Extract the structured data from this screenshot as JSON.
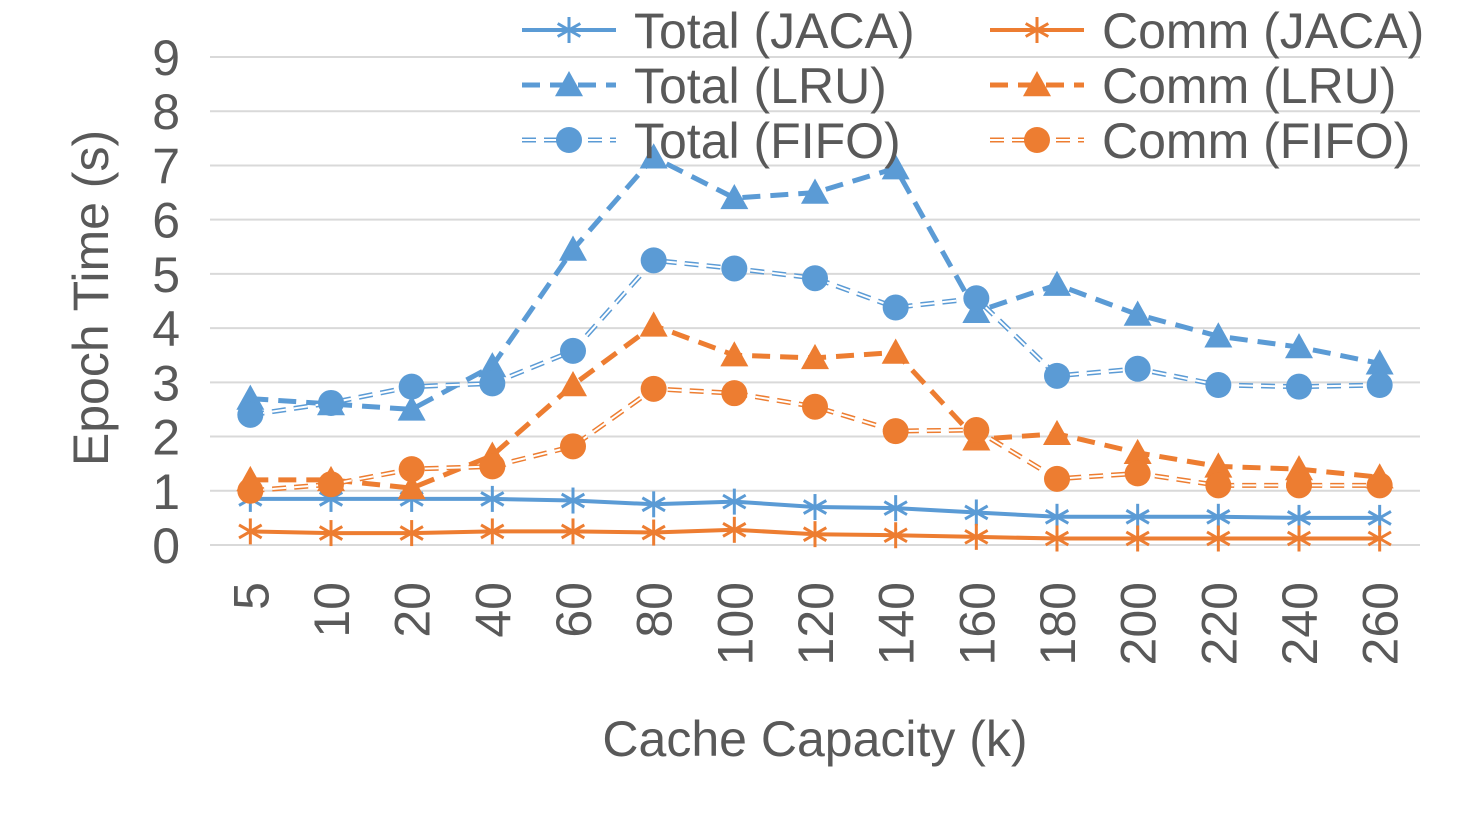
{
  "chart_data": {
    "type": "line",
    "title": "",
    "xlabel": "Cache Capacity (k)",
    "ylabel": "Epoch Time (s)",
    "ylim": [
      0,
      9
    ],
    "yticks": [
      0,
      1,
      2,
      3,
      4,
      5,
      6,
      7,
      8,
      9
    ],
    "grid": true,
    "legend_position": "top-right",
    "categories": [
      "5",
      "10",
      "20",
      "40",
      "60",
      "80",
      "100",
      "120",
      "140",
      "160",
      "180",
      "200",
      "220",
      "240",
      "260"
    ],
    "series": [
      {
        "name": "Total (JACA)",
        "color": "#5B9BD5",
        "style": "solid",
        "marker": "asterisk",
        "values": [
          0.85,
          0.85,
          0.85,
          0.85,
          0.82,
          0.75,
          0.8,
          0.7,
          0.68,
          0.6,
          0.52,
          0.52,
          0.52,
          0.5,
          0.5
        ]
      },
      {
        "name": "Comm (JACA)",
        "color": "#ED7D31",
        "style": "solid",
        "marker": "asterisk",
        "values": [
          0.25,
          0.22,
          0.22,
          0.25,
          0.25,
          0.23,
          0.28,
          0.2,
          0.18,
          0.15,
          0.12,
          0.12,
          0.12,
          0.12,
          0.12
        ]
      },
      {
        "name": "Total (LRU)",
        "color": "#5B9BD5",
        "style": "dashed",
        "marker": "triangle",
        "values": [
          2.7,
          2.6,
          2.5,
          3.3,
          5.45,
          7.15,
          6.4,
          6.5,
          6.95,
          4.3,
          4.8,
          4.25,
          3.85,
          3.65,
          3.35
        ]
      },
      {
        "name": "Comm (LRU)",
        "color": "#ED7D31",
        "style": "dashed",
        "marker": "triangle",
        "values": [
          1.2,
          1.2,
          1.05,
          1.65,
          2.95,
          4.05,
          3.5,
          3.45,
          3.55,
          1.95,
          2.05,
          1.7,
          1.45,
          1.4,
          1.25
        ]
      },
      {
        "name": "Total (FIFO)",
        "color": "#5B9BD5",
        "style": "dotted-outline",
        "marker": "circle",
        "values": [
          2.4,
          2.62,
          2.92,
          2.98,
          3.58,
          5.25,
          5.1,
          4.92,
          4.38,
          4.55,
          3.12,
          3.25,
          2.95,
          2.92,
          2.95
        ]
      },
      {
        "name": "Comm (FIFO)",
        "color": "#ED7D31",
        "style": "dotted-outline",
        "marker": "circle",
        "values": [
          1.0,
          1.12,
          1.4,
          1.45,
          1.82,
          2.88,
          2.8,
          2.55,
          2.1,
          2.12,
          1.22,
          1.32,
          1.1,
          1.1,
          1.1
        ]
      }
    ]
  }
}
